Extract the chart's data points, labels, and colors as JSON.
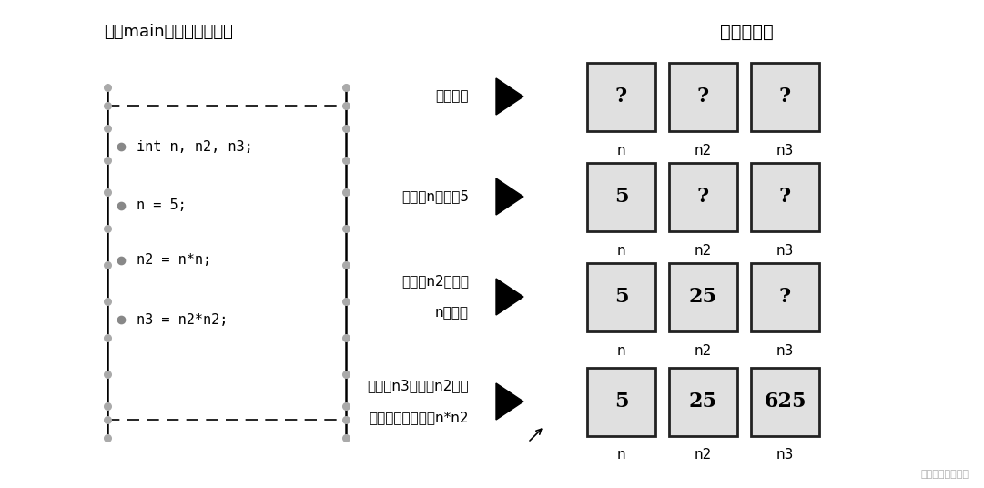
{
  "bg_color": "#ffffff",
  "title_left": "执行main（）中的每一行",
  "title_right": "变量的状态",
  "code_lines": [
    "int n, n2, n3;",
    "n = 5;",
    "n2 = n*n;",
    "n3 = n2*n2;"
  ],
  "rows": [
    {
      "label": "声明变量",
      "label2": "",
      "values": [
        "?",
        "?",
        "?"
      ],
      "vars": [
        "n",
        "n2",
        "n3"
      ]
    },
    {
      "label": "把变量n设置为5",
      "label2": "",
      "values": [
        "5",
        "?",
        "?"
      ],
      "vars": [
        "n",
        "n2",
        "n3"
      ]
    },
    {
      "label": "把变量n2设置为",
      "label2": "n的平方",
      "values": [
        "5",
        "25",
        "?"
      ],
      "vars": [
        "n",
        "n2",
        "n3"
      ]
    },
    {
      "label": "把变量n3设置为n2的平",
      "label2": "方，但本应设置为n*n2",
      "values": [
        "5",
        "25",
        "625"
      ],
      "vars": [
        "n",
        "n2",
        "n3"
      ]
    }
  ],
  "watermark": "稀土掘金技术社区"
}
